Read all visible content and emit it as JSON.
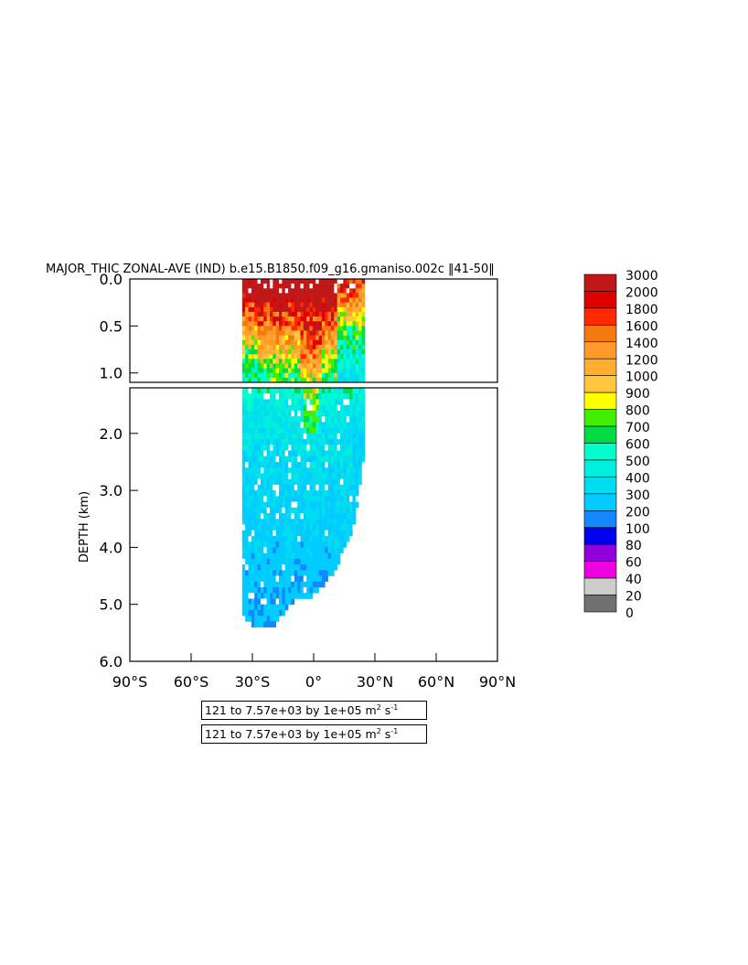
{
  "chart_data": {
    "type": "heatmap",
    "title": "MAJOR_THIC ZONAL-AVE (IND) b.e15.B1850.f09_g16.gmaniso.002c ‖41-50‖",
    "xlabel": "",
    "ylabel": "DEPTH (km)",
    "x_ticks": [
      "90°S",
      "60°S",
      "30°S",
      "0°",
      "30°N",
      "60°N",
      "90°N"
    ],
    "x_tick_values": [
      -90,
      -60,
      -30,
      0,
      30,
      60,
      90
    ],
    "xlim": [
      -90,
      90
    ],
    "upper_panel": {
      "ylim": [
        0.0,
        1.1
      ],
      "y_ticks": [
        "0.0",
        "0.5",
        "1.0"
      ],
      "y_tick_values": [
        0.0,
        0.5,
        1.0
      ]
    },
    "lower_panel": {
      "ylim": [
        1.2,
        6.0
      ],
      "y_ticks": [
        "2.0",
        "3.0",
        "4.0",
        "5.0",
        "6.0"
      ],
      "y_tick_values": [
        2.0,
        3.0,
        4.0,
        5.0,
        6.0
      ]
    },
    "colorbar": {
      "levels": [
        "3000",
        "2000",
        "1800",
        "1600",
        "1400",
        "1200",
        "1000",
        "900",
        "800",
        "700",
        "600",
        "500",
        "400",
        "300",
        "200",
        "100",
        "80",
        "60",
        "40",
        "20",
        "0"
      ],
      "colors": [
        "#c01818",
        "#e00000",
        "#ff2a00",
        "#f47a10",
        "#ff9a2a",
        "#ffae2e",
        "#ffc640",
        "#ffff00",
        "#44ee00",
        "#00dd44",
        "#00ffcc",
        "#00eedd",
        "#00ddee",
        "#00ccff",
        "#1188ff",
        "#0000ee",
        "#9000dd",
        "#ee00dd",
        "#cccccc",
        "#707070"
      ]
    },
    "data_extent": {
      "lat_min": -35,
      "lat_max_near_surface": 25,
      "max_depth_km": 5.35,
      "profile": [
        {
          "lat": -35,
          "bottom_km": 5.1
        },
        {
          "lat": -30,
          "bottom_km": 5.35
        },
        {
          "lat": -20,
          "bottom_km": 5.35
        },
        {
          "lat": -10,
          "bottom_km": 4.9
        },
        {
          "lat": 0,
          "bottom_km": 4.8
        },
        {
          "lat": 10,
          "bottom_km": 4.4
        },
        {
          "lat": 15,
          "bottom_km": 4.0
        },
        {
          "lat": 20,
          "bottom_km": 3.6
        },
        {
          "lat": 25,
          "bottom_km": 2.3
        }
      ],
      "value_by_depth": [
        {
          "depth_km": 0.1,
          "value": 3000
        },
        {
          "depth_km": 0.4,
          "value": 1600
        },
        {
          "depth_km": 0.8,
          "value": 900
        },
        {
          "depth_km": 1.0,
          "value": 700
        },
        {
          "depth_km": 1.5,
          "value": 400
        },
        {
          "depth_km": 3.0,
          "value": 300
        },
        {
          "depth_km": 5.0,
          "value": 200
        }
      ]
    }
  },
  "info_boxes": [
    {
      "range_text": "121 to 7.57e+03 by 1e+05 m",
      "sup1": "2",
      "middle": " s",
      "sup2": "-1"
    },
    {
      "range_text": "121 to 7.57e+03 by 1e+05 m",
      "sup1": "2",
      "middle": " s",
      "sup2": "-1"
    }
  ]
}
